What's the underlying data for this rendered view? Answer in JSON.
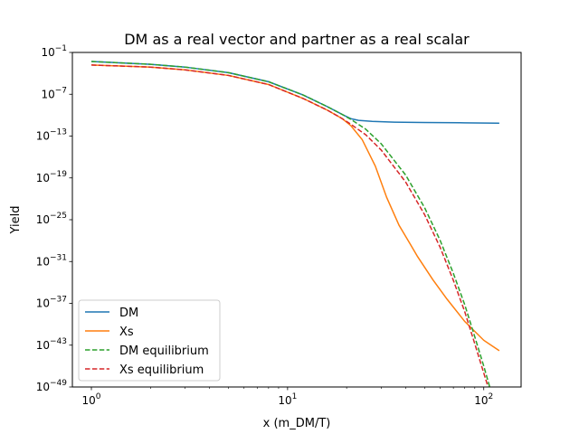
{
  "chart_data": {
    "type": "line",
    "title": "DM as a real vector and partner as a real scalar",
    "xlabel": "x (m_DM/T)",
    "ylabel": "Yield",
    "xscale": "log",
    "yscale": "log",
    "xlim": [
      0.8,
      155
    ],
    "ylim_exp": [
      -49,
      -1
    ],
    "x_ticks": [
      {
        "value": 1,
        "base": "10",
        "exp": "0"
      },
      {
        "value": 10,
        "base": "10",
        "exp": "1"
      },
      {
        "value": 100,
        "base": "10",
        "exp": "2"
      }
    ],
    "y_ticks": [
      {
        "exp_value": -1,
        "base": "10",
        "exp": "−1"
      },
      {
        "exp_value": -7,
        "base": "10",
        "exp": "−7"
      },
      {
        "exp_value": -13,
        "base": "10",
        "exp": "−13"
      },
      {
        "exp_value": -19,
        "base": "10",
        "exp": "−19"
      },
      {
        "exp_value": -25,
        "base": "10",
        "exp": "−25"
      },
      {
        "exp_value": -31,
        "base": "10",
        "exp": "−31"
      },
      {
        "exp_value": -37,
        "base": "10",
        "exp": "−37"
      },
      {
        "exp_value": -43,
        "base": "10",
        "exp": "−43"
      },
      {
        "exp_value": -49,
        "base": "10",
        "exp": "−49"
      }
    ],
    "legend_position": "lower-left",
    "grid": false,
    "series": [
      {
        "name": "DM",
        "color": "#1f77b4",
        "dash": "solid",
        "points": [
          [
            1,
            -2.3
          ],
          [
            2,
            -2.7
          ],
          [
            3,
            -3.1
          ],
          [
            5,
            -3.9
          ],
          [
            8,
            -5.2
          ],
          [
            12,
            -7.1
          ],
          [
            16,
            -8.8
          ],
          [
            19,
            -9.9
          ],
          [
            21,
            -10.5
          ],
          [
            23,
            -10.75
          ],
          [
            27,
            -10.9
          ],
          [
            35,
            -11.0
          ],
          [
            50,
            -11.05
          ],
          [
            80,
            -11.1
          ],
          [
            120,
            -11.15
          ]
        ]
      },
      {
        "name": "Xs",
        "color": "#ff7f0e",
        "dash": "solid",
        "points": [
          [
            1,
            -2.8
          ],
          [
            2,
            -3.1
          ],
          [
            3,
            -3.5
          ],
          [
            5,
            -4.3
          ],
          [
            8,
            -5.6
          ],
          [
            12,
            -7.6
          ],
          [
            16,
            -9.3
          ],
          [
            19,
            -10.5
          ],
          [
            21,
            -11.5
          ],
          [
            24,
            -13.5
          ],
          [
            28,
            -17.3
          ],
          [
            32,
            -21.8
          ],
          [
            37,
            -25.8
          ],
          [
            42,
            -28.4
          ],
          [
            46,
            -30.3
          ],
          [
            55,
            -33.6
          ],
          [
            65,
            -36.4
          ],
          [
            80,
            -39.6
          ],
          [
            100,
            -42.3
          ],
          [
            120,
            -43.8
          ]
        ]
      },
      {
        "name": "DM equilibrium",
        "color": "#2ca02c",
        "dash": "dashed",
        "points": [
          [
            1,
            -2.3
          ],
          [
            2,
            -2.7
          ],
          [
            3,
            -3.1
          ],
          [
            5,
            -3.9
          ],
          [
            8,
            -5.2
          ],
          [
            12,
            -7.1
          ],
          [
            16,
            -8.8
          ],
          [
            19,
            -9.9
          ],
          [
            21,
            -10.6
          ],
          [
            25,
            -12.0
          ],
          [
            30,
            -14.1
          ],
          [
            40,
            -18.6
          ],
          [
            50,
            -23.3
          ],
          [
            60,
            -28.0
          ],
          [
            70,
            -32.7
          ],
          [
            80,
            -37.2
          ],
          [
            90,
            -41.8
          ],
          [
            100,
            -46.0
          ],
          [
            108,
            -49.3
          ]
        ]
      },
      {
        "name": "Xs equilibrium",
        "color": "#d62728",
        "dash": "dashed",
        "points": [
          [
            1,
            -2.8
          ],
          [
            2,
            -3.1
          ],
          [
            3,
            -3.5
          ],
          [
            5,
            -4.3
          ],
          [
            8,
            -5.6
          ],
          [
            12,
            -7.6
          ],
          [
            16,
            -9.3
          ],
          [
            19,
            -10.5
          ],
          [
            21,
            -11.3
          ],
          [
            25,
            -12.8
          ],
          [
            30,
            -15.0
          ],
          [
            40,
            -19.6
          ],
          [
            50,
            -24.3
          ],
          [
            60,
            -29.0
          ],
          [
            70,
            -33.7
          ],
          [
            80,
            -38.2
          ],
          [
            90,
            -42.8
          ],
          [
            100,
            -47.0
          ],
          [
            106,
            -49.3
          ]
        ]
      }
    ]
  }
}
